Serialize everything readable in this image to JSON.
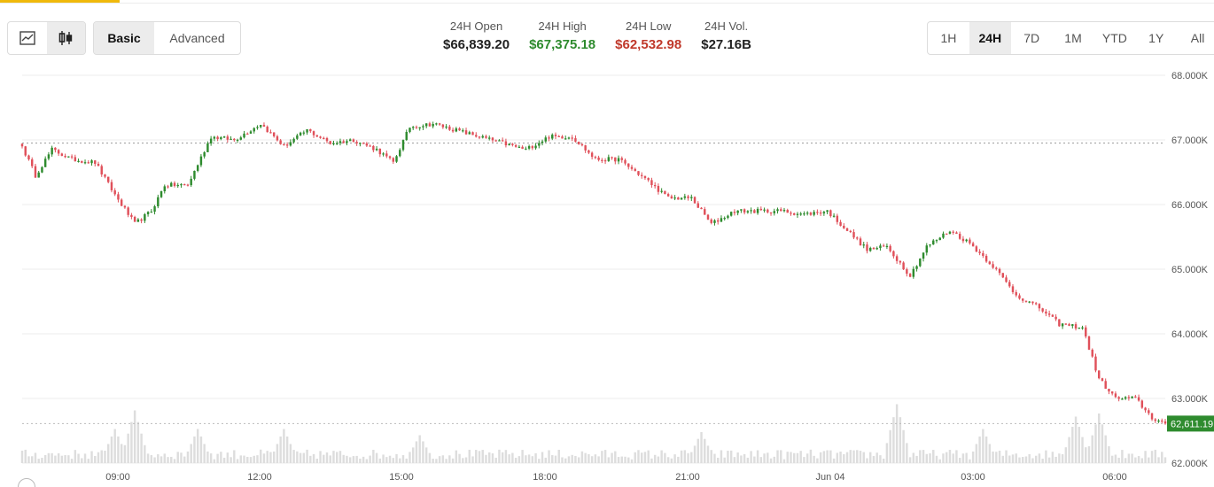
{
  "toolbar": {
    "chart_types": [
      {
        "name": "line",
        "icon": "line-chart-icon",
        "active": false
      },
      {
        "name": "candles",
        "icon": "candlestick-icon",
        "active": true
      }
    ],
    "modes": [
      "Basic",
      "Advanced"
    ],
    "active_mode": "Basic"
  },
  "stats": [
    {
      "label": "24H Open",
      "value": "$66,839.20",
      "tone": "neutral"
    },
    {
      "label": "24H High",
      "value": "$67,375.18",
      "tone": "up"
    },
    {
      "label": "24H Low",
      "value": "$62,532.98",
      "tone": "down"
    },
    {
      "label": "24H Vol.",
      "value": "$27.16B",
      "tone": "neutral"
    }
  ],
  "ranges": [
    "1H",
    "24H",
    "7D",
    "1M",
    "YTD",
    "1Y",
    "All"
  ],
  "active_range": "24H",
  "colors": {
    "up": "#2e8b2e",
    "down": "#e0505a",
    "volume": "#dddddd",
    "grid": "#ececec",
    "price_tag": "#2e8b2e"
  },
  "chart_data": {
    "type": "candlestick",
    "y_ticks": [
      "68.000K",
      "67.000K",
      "66.000K",
      "65.000K",
      "64.000K",
      "63.000K",
      "62.000K"
    ],
    "ylim": [
      62000,
      68000
    ],
    "x_ticks": [
      "09:00",
      "12:00",
      "15:00",
      "18:00",
      "21:00",
      "Jun 04",
      "03:00",
      "06:00"
    ],
    "reference_line": 66950,
    "last_price": 62611.19,
    "last_price_label": "62,611.19",
    "path_keypoints": [
      [
        0,
        66900
      ],
      [
        4,
        66450
      ],
      [
        9,
        66850
      ],
      [
        15,
        66700
      ],
      [
        22,
        66650
      ],
      [
        28,
        66150
      ],
      [
        34,
        65700
      ],
      [
        39,
        65900
      ],
      [
        43,
        66300
      ],
      [
        50,
        66300
      ],
      [
        57,
        67050
      ],
      [
        64,
        67000
      ],
      [
        72,
        67250
      ],
      [
        79,
        66900
      ],
      [
        86,
        67150
      ],
      [
        93,
        66950
      ],
      [
        100,
        67000
      ],
      [
        107,
        66850
      ],
      [
        112,
        66650
      ],
      [
        117,
        67200
      ],
      [
        124,
        67250
      ],
      [
        131,
        67150
      ],
      [
        138,
        67050
      ],
      [
        145,
        66950
      ],
      [
        152,
        66850
      ],
      [
        159,
        67050
      ],
      [
        166,
        67050
      ],
      [
        173,
        66700
      ],
      [
        180,
        66700
      ],
      [
        188,
        66400
      ],
      [
        195,
        66100
      ],
      [
        202,
        66100
      ],
      [
        208,
        65700
      ],
      [
        215,
        65900
      ],
      [
        222,
        65900
      ],
      [
        229,
        65900
      ],
      [
        236,
        65850
      ],
      [
        243,
        65900
      ],
      [
        249,
        65600
      ],
      [
        255,
        65300
      ],
      [
        261,
        65350
      ],
      [
        268,
        64900
      ],
      [
        273,
        65350
      ],
      [
        280,
        65600
      ],
      [
        286,
        65400
      ],
      [
        293,
        65050
      ],
      [
        300,
        64600
      ],
      [
        307,
        64400
      ],
      [
        313,
        64150
      ],
      [
        320,
        64100
      ],
      [
        325,
        63300
      ],
      [
        330,
        63000
      ],
      [
        336,
        63000
      ],
      [
        341,
        62700
      ],
      [
        345,
        62611
      ]
    ],
    "volume_spikes": [
      [
        28,
        0.55
      ],
      [
        34,
        0.85
      ],
      [
        53,
        0.55
      ],
      [
        79,
        0.55
      ],
      [
        120,
        0.45
      ],
      [
        205,
        0.5
      ],
      [
        264,
        0.95
      ],
      [
        290,
        0.55
      ],
      [
        318,
        0.75
      ],
      [
        325,
        0.8
      ]
    ]
  }
}
